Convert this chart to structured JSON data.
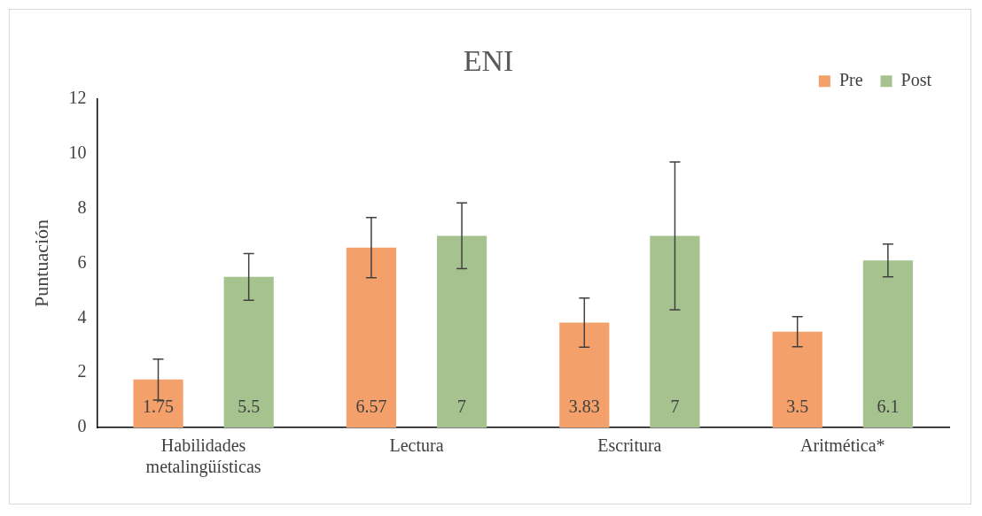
{
  "chart_data": {
    "type": "bar",
    "title": "ENI",
    "ylabel": "Puntuación",
    "categories": [
      "Habilidades metalingüísticas",
      "Lectura",
      "Escritura",
      "Aritmética*"
    ],
    "series": [
      {
        "name": "Pre",
        "color": "#f4a06a",
        "values": [
          1.75,
          6.57,
          3.83,
          3.5
        ],
        "errors": [
          0.75,
          1.1,
          0.9,
          0.55
        ]
      },
      {
        "name": "Post",
        "color": "#a5c28f",
        "values": [
          5.5,
          7,
          7,
          6.1
        ],
        "errors": [
          0.85,
          1.2,
          2.7,
          0.6
        ]
      }
    ],
    "ylim": [
      0,
      12
    ],
    "yticks": [
      0,
      2,
      4,
      6,
      8,
      10,
      12
    ],
    "grid": false,
    "legend": "top right",
    "data_labels": true
  }
}
